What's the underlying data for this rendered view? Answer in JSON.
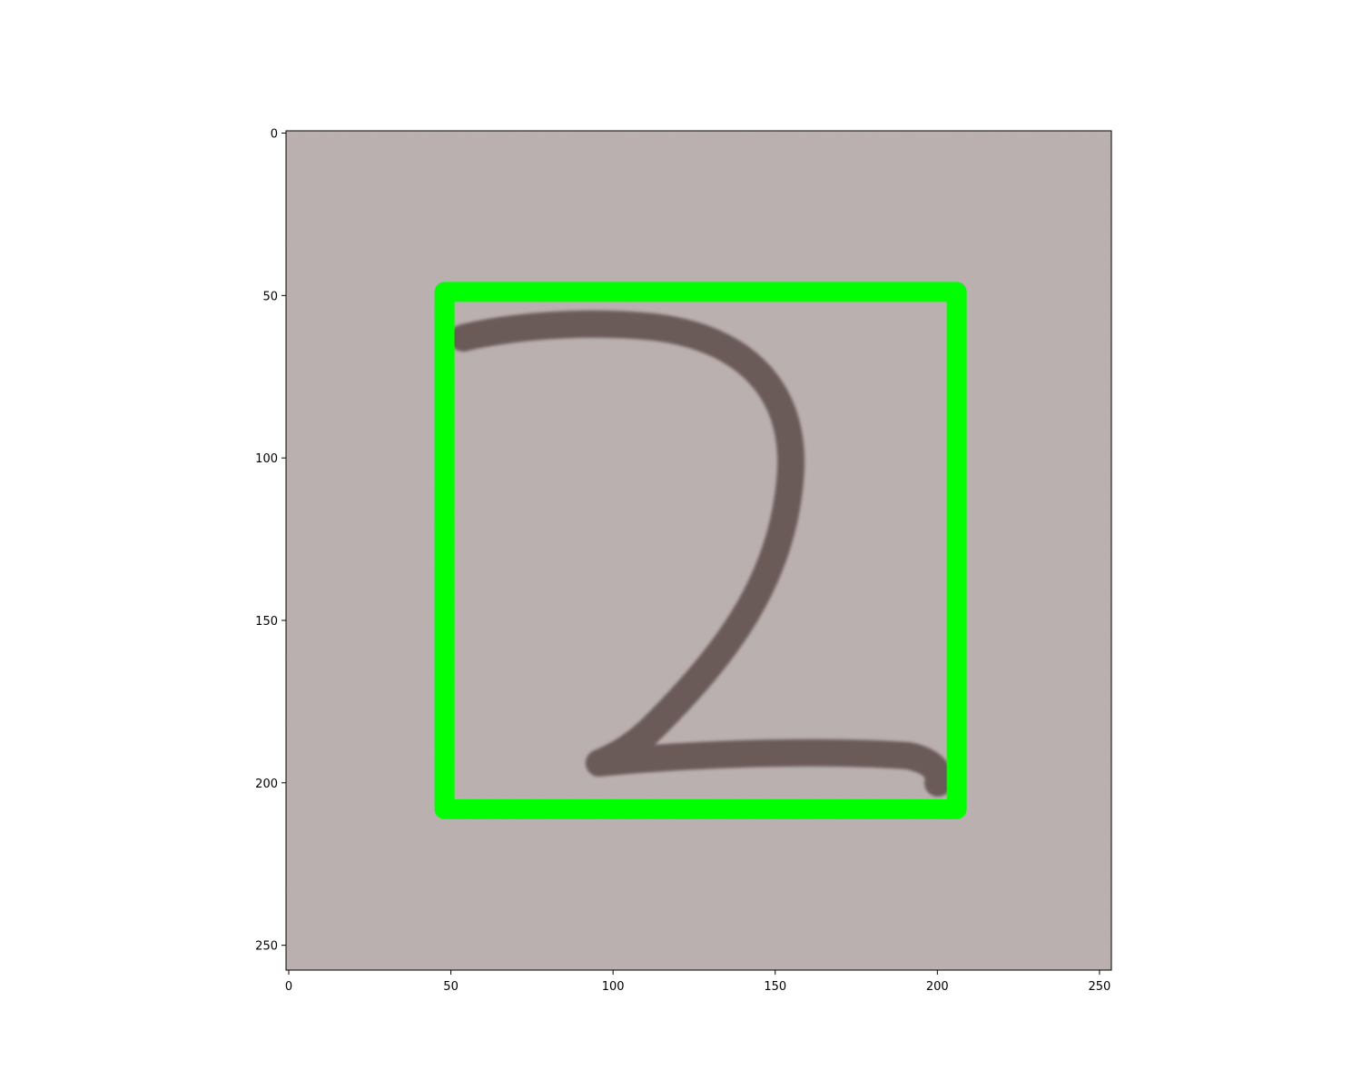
{
  "image": {
    "description_visible": "handwritten digit",
    "digit_glyph": "2",
    "background_color": "#bcb2b1",
    "ink_color": "#6a5a58",
    "box_color": "#00ff00"
  },
  "chart_data": {
    "type": "image",
    "title": "",
    "xlabel": "",
    "ylabel": "",
    "xlim": [
      0,
      255
    ],
    "ylim": [
      258,
      0
    ],
    "x_ticks": [
      0,
      50,
      100,
      150,
      200,
      250
    ],
    "y_ticks": [
      0,
      50,
      100,
      150,
      200,
      250
    ],
    "bounding_box": {
      "x_min": 50,
      "y_min": 50,
      "x_max": 204,
      "y_max": 207
    }
  }
}
